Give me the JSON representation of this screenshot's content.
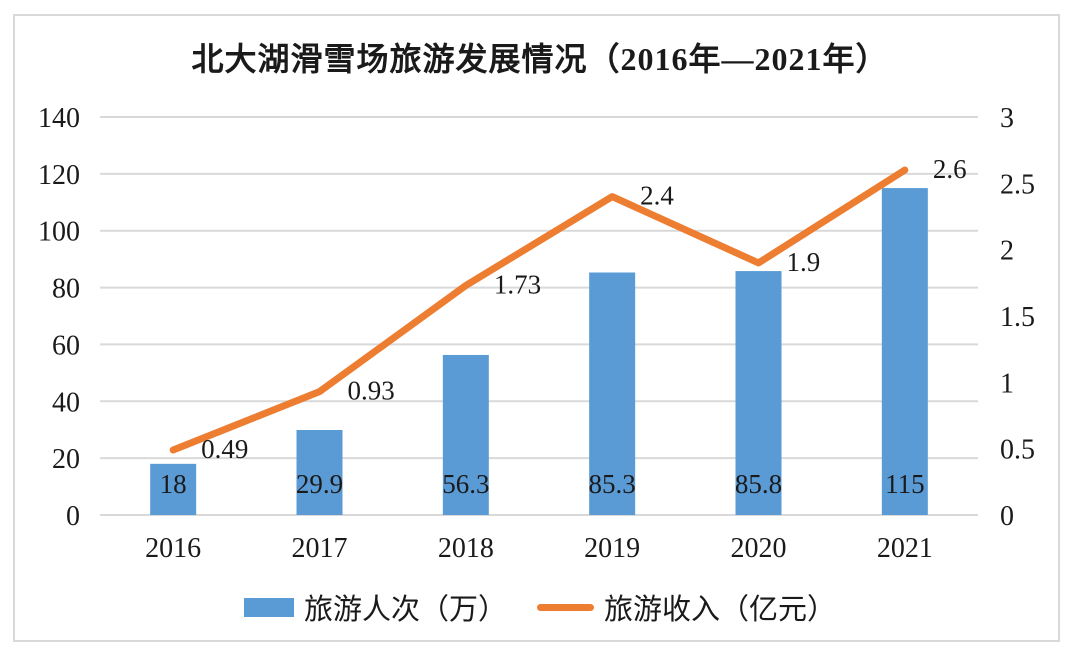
{
  "title": "北大湖滑雪场旅游发展情况（2016年—2021年）",
  "colors": {
    "bar": "#5B9BD5",
    "line": "#ED7D31",
    "grid": "#D9D9D9",
    "text": "#1A1A1A",
    "frame_border": "#D9D9D9",
    "background": "#FFFFFF"
  },
  "legend": {
    "items": [
      {
        "label": "旅游人次（万）",
        "swatch": "bar-swatch"
      },
      {
        "label": "旅游收入（亿元）",
        "swatch": "line-swatch"
      }
    ]
  },
  "chart_data": {
    "type": "bar+line combo",
    "title": "北大湖滑雪场旅游发展情况（2016年—2021年）",
    "categories": [
      "2016",
      "2017",
      "2018",
      "2019",
      "2020",
      "2021"
    ],
    "series": [
      {
        "name": "旅游人次（万）",
        "type": "bar",
        "axis": "left",
        "values": [
          18,
          29.9,
          56.3,
          85.3,
          85.8,
          115
        ],
        "labels": [
          "18",
          "29.9",
          "56.3",
          "85.3",
          "85.8",
          "115"
        ],
        "label_position": "inside-base"
      },
      {
        "name": "旅游收入（亿元）",
        "type": "line",
        "axis": "right",
        "values": [
          0.49,
          0.93,
          1.73,
          2.4,
          1.9,
          2.6
        ],
        "labels": [
          "0.49",
          "0.93",
          "1.73",
          "2.4",
          "1.9",
          "2.6"
        ],
        "label_position": "right-of-point"
      }
    ],
    "left_axis": {
      "min": 0,
      "max": 140,
      "ticks": [
        "140",
        "120",
        "100",
        "80",
        "60",
        "40",
        "20",
        "0"
      ]
    },
    "right_axis": {
      "min": 0,
      "max": 3,
      "ticks": [
        "3",
        "2.5",
        "2",
        "1.5",
        "1",
        "0.5",
        "0"
      ]
    },
    "grid": true,
    "gridlines_follow": "left_axis",
    "legend_position": "bottom"
  }
}
